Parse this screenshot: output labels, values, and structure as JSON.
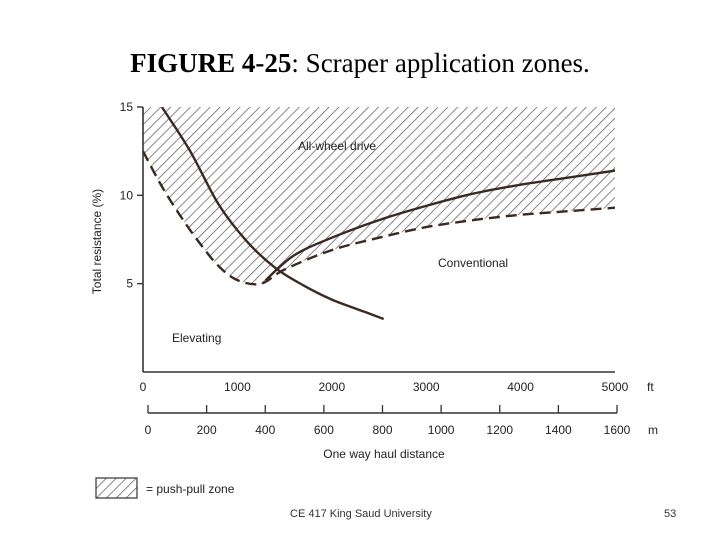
{
  "slide": {
    "title_bold": "FIGURE 4-25",
    "title_rest": ": Scraper application zones.",
    "footer": "CE 417 King Saud University",
    "page_number": "53"
  },
  "chart_data": {
    "type": "line",
    "title": "",
    "xlabel": "One way haul distance",
    "ylabel": "Total resistance (%)",
    "x_unit_primary": "ft",
    "x_unit_secondary": "m",
    "xlim_ft": [
      0,
      5000
    ],
    "ylim": [
      0,
      15
    ],
    "x_ticks_ft": [
      "0",
      "1000",
      "2000",
      "3000",
      "4000",
      "5000"
    ],
    "x_ticks_m": [
      "0",
      "200",
      "400",
      "600",
      "800",
      "1000",
      "1200",
      "1400",
      "1600"
    ],
    "y_ticks": [
      "5",
      "10",
      "15"
    ],
    "zone_labels": {
      "all_wheel": "All-wheel drive",
      "conventional": "Conventional",
      "elevating": "Elevating"
    },
    "legend_label": "= push-pull zone",
    "series": [
      {
        "name": "Elevating",
        "style": "solid",
        "points": [
          [
            200,
            15
          ],
          [
            500,
            12.5
          ],
          [
            800,
            9.5
          ],
          [
            1100,
            7.4
          ],
          [
            1400,
            5.9
          ],
          [
            1700,
            4.9
          ],
          [
            2000,
            4.1
          ],
          [
            2300,
            3.5
          ],
          [
            2550,
            3.0
          ]
        ]
      },
      {
        "name": "Conventional",
        "style": "solid",
        "points": [
          [
            1300,
            5.2
          ],
          [
            1600,
            6.6
          ],
          [
            2000,
            7.6
          ],
          [
            2500,
            8.6
          ],
          [
            3000,
            9.4
          ],
          [
            3500,
            10.1
          ],
          [
            4000,
            10.6
          ],
          [
            4500,
            11.0
          ],
          [
            5000,
            11.4
          ]
        ]
      },
      {
        "name": "push-pull boundary",
        "style": "dashed",
        "points": [
          [
            0,
            12.5
          ],
          [
            200,
            10.5
          ],
          [
            400,
            8.8
          ],
          [
            600,
            7.3
          ],
          [
            800,
            6.0
          ],
          [
            1000,
            5.2
          ],
          [
            1250,
            5.0
          ],
          [
            1500,
            5.8
          ],
          [
            2000,
            6.9
          ],
          [
            2500,
            7.6
          ],
          [
            3000,
            8.2
          ],
          [
            3500,
            8.6
          ],
          [
            4000,
            8.9
          ],
          [
            4500,
            9.1
          ],
          [
            5000,
            9.3
          ]
        ]
      }
    ],
    "hatch_top_boundary": [
      [
        0,
        15
      ],
      [
        5000,
        15
      ]
    ],
    "colors": {
      "line": "#3a2a22",
      "hatch": "#555555"
    }
  }
}
